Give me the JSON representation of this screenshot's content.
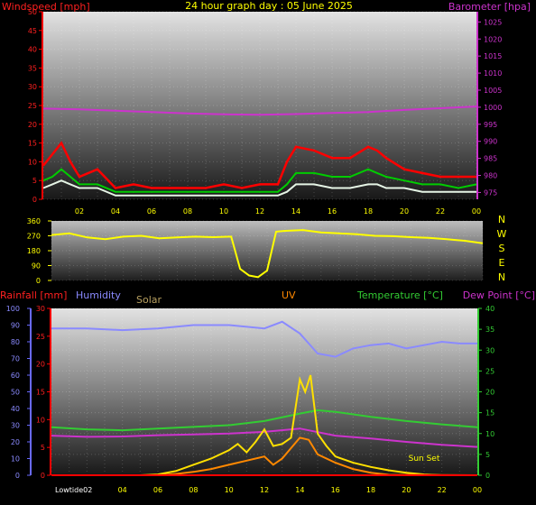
{
  "title": "24 hour graph day : 05 June 2025",
  "colors": {
    "background": "#000000",
    "wind_speed": "#ff0000",
    "wind_avg": "#00cc00",
    "wind_white": "#e6f5e6",
    "barometer": "#cc33cc",
    "direction": "#ffff00",
    "rain": "#ff0000",
    "humidity": "#8a8aff",
    "solar": "#ffe000",
    "solar_label": "#b8a060",
    "uv": "#ff8800",
    "temperature": "#33cc33",
    "dewpoint": "#cc33cc",
    "time_labels": "#ffff00",
    "compass_labels": "#ffff00"
  },
  "chart_data": [
    {
      "id": "wind_baro",
      "type": "line",
      "left_axis_label": "Windspeed [mph]",
      "right_axis_label": "Barometer [hpa]",
      "x_ticks": [
        "02",
        "04",
        "06",
        "08",
        "10",
        "12",
        "14",
        "16",
        "18",
        "20",
        "22",
        "00"
      ],
      "left_ticks": [
        0,
        5,
        10,
        15,
        20,
        25,
        30,
        35,
        40,
        45,
        50
      ],
      "left_range": [
        0,
        50
      ],
      "right_ticks": [
        975,
        980,
        985,
        990,
        995,
        1000,
        1005,
        1010,
        1015,
        1020,
        1025
      ],
      "right_range": [
        973,
        1028
      ],
      "series": [
        {
          "axis": "right",
          "color_key": "barometer",
          "x": [
            0,
            2,
            4,
            6,
            8,
            10,
            12,
            14,
            16,
            18,
            20,
            22,
            24
          ],
          "y": [
            999.6,
            999.4,
            999.0,
            998.6,
            998.2,
            997.9,
            997.8,
            998.0,
            998.3,
            998.6,
            999.2,
            999.7,
            1000.2
          ]
        },
        {
          "axis": "left",
          "color_key": "wind_speed",
          "x": [
            0,
            0.5,
            1,
            1.5,
            2,
            3,
            4,
            5,
            6,
            7,
            8,
            9,
            10,
            11,
            12,
            13,
            13.5,
            14,
            15,
            16,
            17,
            18,
            18.5,
            19,
            20,
            21,
            22,
            23,
            24
          ],
          "y": [
            9,
            12,
            15,
            10,
            6,
            8,
            3,
            4,
            3,
            3,
            3,
            3,
            4,
            3,
            4,
            4,
            10,
            14,
            13,
            11,
            11,
            14,
            13,
            11,
            8,
            7,
            6,
            6,
            6
          ]
        },
        {
          "axis": "left",
          "color_key": "wind_avg",
          "x": [
            0,
            0.5,
            1,
            1.5,
            2,
            3,
            4,
            5,
            6,
            7,
            8,
            9,
            10,
            11,
            12,
            13,
            13.5,
            14,
            15,
            16,
            17,
            18,
            18.5,
            19,
            20,
            21,
            22,
            23,
            24
          ],
          "y": [
            5,
            6,
            8,
            6,
            4,
            4,
            2,
            2,
            2,
            2,
            2,
            2,
            2,
            2,
            2,
            2,
            4,
            7,
            7,
            6,
            6,
            8,
            7,
            6,
            5,
            4,
            4,
            3,
            4
          ]
        },
        {
          "axis": "left",
          "color_key": "wind_white",
          "x": [
            0,
            0.5,
            1,
            1.5,
            2,
            3,
            4,
            5,
            6,
            7,
            8,
            9,
            10,
            11,
            12,
            13,
            13.5,
            14,
            15,
            16,
            17,
            18,
            18.5,
            19,
            20,
            21,
            22,
            23,
            24
          ],
          "y": [
            3,
            4,
            5,
            4,
            3,
            3,
            1,
            1,
            1,
            1,
            1,
            1,
            1,
            1,
            1,
            1,
            2,
            4,
            4,
            3,
            3,
            4,
            4,
            3,
            3,
            2,
            2,
            2,
            2
          ]
        }
      ]
    },
    {
      "id": "direction",
      "type": "line",
      "left_ticks": [
        0,
        90,
        180,
        270,
        360
      ],
      "left_range": [
        0,
        360
      ],
      "compass_labels": [
        "N",
        "W",
        "S",
        "E",
        "N"
      ],
      "x_ticks": [],
      "series": [
        {
          "axis": "left",
          "color_key": "direction",
          "x": [
            0,
            1,
            2,
            3,
            4,
            5,
            6,
            7,
            8,
            9,
            10,
            10.5,
            11,
            11.5,
            12,
            12.5,
            13,
            14,
            15,
            16,
            17,
            18,
            19,
            20,
            21,
            22,
            23,
            24
          ],
          "y": [
            275,
            285,
            260,
            250,
            265,
            270,
            255,
            260,
            265,
            262,
            265,
            70,
            30,
            20,
            60,
            295,
            300,
            305,
            290,
            285,
            280,
            270,
            268,
            262,
            258,
            250,
            240,
            225
          ]
        }
      ]
    },
    {
      "id": "weather",
      "type": "line",
      "headers": {
        "rainfall": "Rainfall [mm]",
        "humidity": "Humidity",
        "solar": "Solar",
        "uv": "UV",
        "temperature": "Temperature [°C]",
        "dewpoint": "Dew Point [°C]"
      },
      "humidity_ticks": [
        0,
        10,
        20,
        30,
        40,
        50,
        60,
        70,
        80,
        90,
        100
      ],
      "rain_ticks": [
        0,
        5,
        10,
        15,
        20,
        25,
        30
      ],
      "rain_range": [
        0,
        30
      ],
      "temp_ticks": [
        0,
        5,
        10,
        15,
        20,
        25,
        30,
        35,
        40
      ],
      "temp_range": [
        0,
        40
      ],
      "x_ticks": [
        "Lowtide02",
        "04",
        "06",
        "08",
        "10",
        "12",
        "14",
        "16",
        "18",
        "20",
        "22",
        "00"
      ],
      "annotations": [
        {
          "text": "Sun Set",
          "x": 21
        }
      ],
      "series": [
        {
          "name": "Humidity",
          "axis": "humidity",
          "color_key": "humidity",
          "x": [
            0,
            2,
            4,
            6,
            8,
            10,
            12,
            13,
            14,
            15,
            16,
            17,
            18,
            19,
            20,
            21,
            22,
            23,
            24
          ],
          "y": [
            88,
            88,
            87,
            88,
            90,
            90,
            88,
            92,
            85,
            73,
            71,
            76,
            78,
            79,
            76,
            78,
            80,
            79,
            79
          ]
        },
        {
          "name": "Temperature",
          "axis": "temp",
          "color_key": "temperature",
          "x": [
            0,
            2,
            4,
            6,
            8,
            10,
            12,
            14,
            15,
            16,
            18,
            20,
            22,
            24
          ],
          "y": [
            11.5,
            11.0,
            10.8,
            11.2,
            11.6,
            12.0,
            13.0,
            14.8,
            15.6,
            15.2,
            14.0,
            13.0,
            12.2,
            11.5
          ]
        },
        {
          "name": "Dew Point",
          "axis": "temp",
          "color_key": "dewpoint",
          "x": [
            0,
            2,
            4,
            6,
            8,
            10,
            12,
            14,
            16,
            18,
            20,
            22,
            24
          ],
          "y": [
            9.5,
            9.2,
            9.3,
            9.6,
            9.8,
            10.0,
            10.4,
            11.2,
            9.5,
            8.8,
            8.0,
            7.3,
            6.8
          ]
        },
        {
          "name": "Solar",
          "axis": "temp",
          "color_key": "solar",
          "x": [
            0,
            5,
            6,
            7,
            8,
            9,
            10,
            10.5,
            11,
            11.5,
            12,
            12.5,
            13,
            13.5,
            14,
            14.3,
            14.6,
            15,
            15.5,
            16,
            17,
            18,
            19,
            20,
            21,
            22,
            24
          ],
          "y": [
            0,
            0,
            0.2,
            1.0,
            2.5,
            4.0,
            6.0,
            7.5,
            5.5,
            8.0,
            11.0,
            7.0,
            7.5,
            9.0,
            23.0,
            20.0,
            24.0,
            10.0,
            7.0,
            4.5,
            3.0,
            2.0,
            1.2,
            0.6,
            0.2,
            0,
            0
          ]
        },
        {
          "name": "UV",
          "axis": "temp",
          "color_key": "uv",
          "x": [
            0,
            6,
            7,
            8,
            9,
            10,
            11,
            12,
            12.5,
            13,
            14,
            14.5,
            15,
            16,
            17,
            18,
            19,
            24
          ],
          "y": [
            0,
            0,
            0.3,
            0.8,
            1.5,
            2.5,
            3.5,
            4.5,
            2.5,
            4.0,
            9.0,
            8.5,
            5.0,
            3.0,
            1.5,
            0.6,
            0.1,
            0
          ]
        },
        {
          "name": "Rainfall",
          "axis": "rain",
          "color_key": "rain",
          "x": [
            0,
            24
          ],
          "y": [
            0,
            0
          ]
        }
      ]
    }
  ]
}
